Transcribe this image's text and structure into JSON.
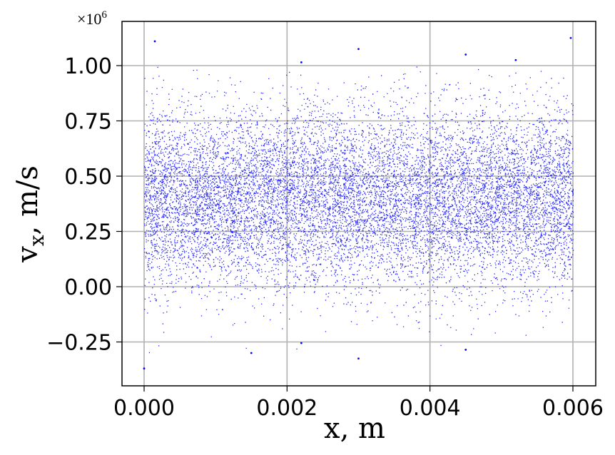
{
  "chart_data": {
    "type": "scatter",
    "title": "",
    "xlabel": "x,  m",
    "ylabel": "v_x,  m/s",
    "y_multiplier": "×10^6",
    "xlim": [
      -0.0003,
      0.00633
    ],
    "ylim": [
      -0.45,
      1.18
    ],
    "x_ticks": [
      0.0,
      0.002,
      0.004,
      0.006
    ],
    "x_tick_labels": [
      "0.000",
      "0.002",
      "0.004",
      "0.006"
    ],
    "y_ticks": [
      -0.25,
      0.0,
      0.25,
      0.5,
      0.75,
      1.0
    ],
    "y_tick_labels": [
      "−0.25",
      "0.00",
      "0.25",
      "0.50",
      "0.75",
      "1.00"
    ],
    "grid": true,
    "legend": null,
    "marker_color": "#0000ff",
    "marker_size": 1.3,
    "series": [
      {
        "name": "particles",
        "description": "dense uniform-in-x particle cloud spanning x 0 to 0.006 m; vx roughly Gaussian centered ~0.4e6 m/s, core 0.25-0.5e6, tails to ~1.1e6 and ~-0.37e6",
        "x_range": [
          0.0,
          0.006
        ],
        "vx_center": 0.4,
        "vx_core_range": [
          0.2,
          0.55
        ],
        "vx_dense_range": [
          0.0,
          0.75
        ],
        "notable_points": [
          {
            "x": 0.00015,
            "y": 1.11
          },
          {
            "x": 0.0022,
            "y": 1.015
          },
          {
            "x": 0.003,
            "y": 1.075
          },
          {
            "x": 0.0045,
            "y": 1.05
          },
          {
            "x": 0.0052,
            "y": 1.025
          },
          {
            "x": 0.00597,
            "y": 1.125
          },
          {
            "x": 0.0,
            "y": -0.37
          },
          {
            "x": 0.0015,
            "y": -0.3
          },
          {
            "x": 0.003,
            "y": -0.325
          },
          {
            "x": 0.0045,
            "y": -0.285
          },
          {
            "x": 0.0022,
            "y": -0.255
          }
        ]
      }
    ]
  }
}
